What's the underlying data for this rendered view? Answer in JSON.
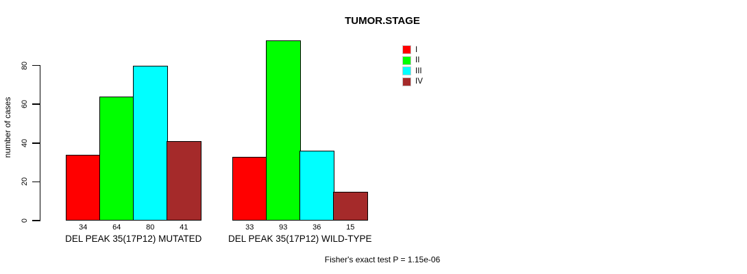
{
  "chart_data": {
    "type": "bar",
    "title": "TUMOR.STAGE",
    "xlabel": "",
    "ylabel": "number of cases",
    "ylim": [
      0,
      80
    ],
    "yticks": [
      0,
      20,
      40,
      60,
      80
    ],
    "grid": false,
    "legend_position": "top-right",
    "legend": [
      {
        "label": "I",
        "color": "#ff0000"
      },
      {
        "label": "II",
        "color": "#00ff00"
      },
      {
        "label": "III",
        "color": "#00ffff"
      },
      {
        "label": "IV",
        "color": "#a52a2a"
      }
    ],
    "categories": [
      "DEL PEAK 35(17P12) MUTATED",
      "DEL PEAK 35(17P12) WILD-TYPE"
    ],
    "groups": [
      {
        "label": "DEL PEAK 35(17P12) MUTATED",
        "values": [
          34,
          64,
          80,
          41
        ]
      },
      {
        "label": "DEL PEAK 35(17P12) WILD-TYPE",
        "values": [
          33,
          93,
          36,
          15
        ]
      }
    ],
    "bar_value_labels_shown": true,
    "footnote": "Fisher's exact test P = 1.15e-06",
    "bar_border_color": "#000000",
    "background_color": "#ffffff"
  }
}
